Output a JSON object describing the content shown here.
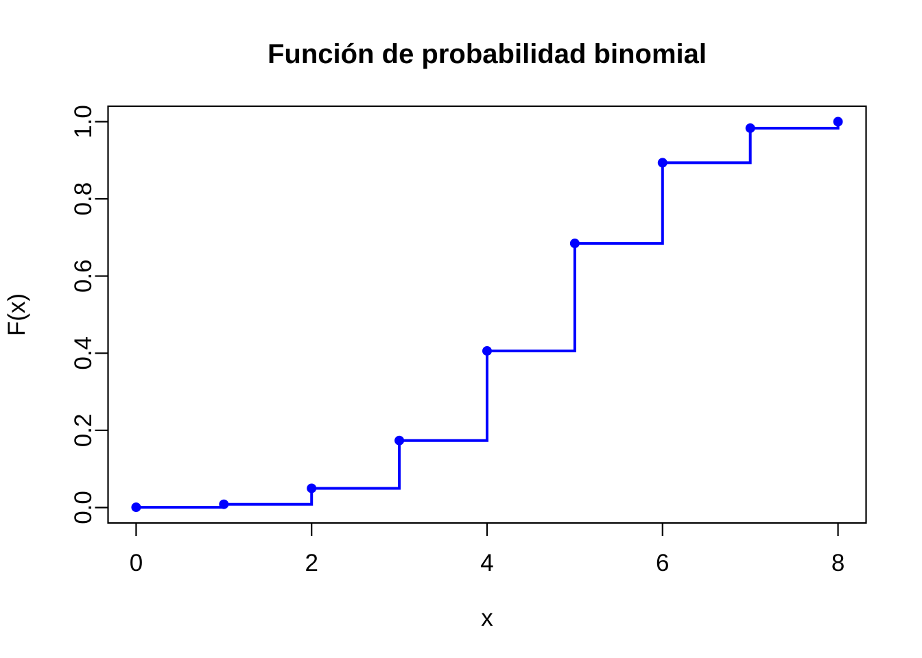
{
  "page": {
    "background_color": "#ffffff"
  },
  "chart_data": {
    "type": "line",
    "style": "step",
    "title": "Función de probabilidad binomial",
    "xlabel": "x",
    "ylabel": "F(x)",
    "x": [
      0,
      1,
      2,
      3,
      4,
      5,
      6,
      7,
      8
    ],
    "y": [
      0.0007,
      0.0085,
      0.0498,
      0.1737,
      0.4059,
      0.6846,
      0.8936,
      0.9832,
      1.0
    ],
    "xtick_values": [
      0,
      2,
      4,
      6,
      8
    ],
    "xtick_labels": [
      "0",
      "2",
      "4",
      "6",
      "8"
    ],
    "ytick_values": [
      0,
      0.2,
      0.4,
      0.6,
      0.8,
      1.0
    ],
    "ytick_labels": [
      "0.0",
      "0.2",
      "0.4",
      "0.6",
      "0.8",
      "1.0"
    ],
    "xlim": [
      -0.32,
      8.32
    ],
    "ylim": [
      -0.04,
      1.04
    ],
    "grid": false,
    "legend": "none",
    "line_color": "#0000ff",
    "point_color": "#0000ff",
    "frame_color": "#000000",
    "text_color": "#000000"
  }
}
